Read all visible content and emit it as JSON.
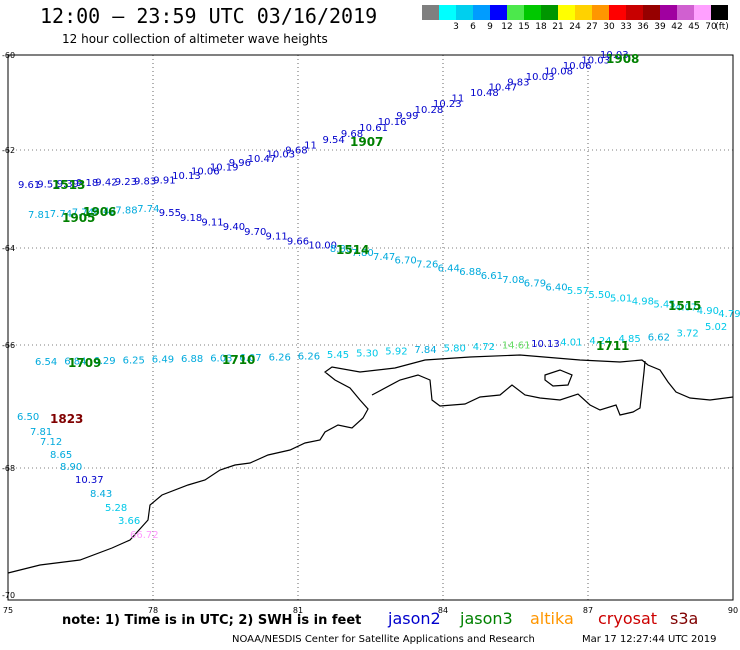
{
  "header": {
    "title": "12:00 — 23:59 UTC 03/16/2019",
    "subtitle": "12 hour collection of altimeter wave heights"
  },
  "legend": {
    "unit": "(ft)",
    "bins": [
      {
        "label": "",
        "color": "#7f7f7f"
      },
      {
        "label": "3",
        "color": "#00ffff"
      },
      {
        "label": "6",
        "color": "#00cfee"
      },
      {
        "label": "9",
        "color": "#009cff"
      },
      {
        "label": "12",
        "color": "#0000ff"
      },
      {
        "label": "15",
        "color": "#4ce84c"
      },
      {
        "label": "18",
        "color": "#00c800"
      },
      {
        "label": "21",
        "color": "#009600"
      },
      {
        "label": "24",
        "color": "#ffff00"
      },
      {
        "label": "27",
        "color": "#ffd200"
      },
      {
        "label": "30",
        "color": "#ff9600"
      },
      {
        "label": "33",
        "color": "#ff0000"
      },
      {
        "label": "36",
        "color": "#c80000"
      },
      {
        "label": "39",
        "color": "#960000"
      },
      {
        "label": "42",
        "color": "#a000a0"
      },
      {
        "label": "45",
        "color": "#d060d0"
      },
      {
        "label": "70",
        "color": "#ffa0ff"
      },
      {
        "label": "",
        "color": "#000000"
      }
    ]
  },
  "axes": {
    "lon_ticks": [
      "75",
      "78",
      "81",
      "84",
      "87",
      "90"
    ],
    "lat_ticks": [
      "-60",
      "-62",
      "-64",
      "-66",
      "-68",
      "-70"
    ]
  },
  "passes": [
    {
      "time": "1908",
      "color": "#008000"
    },
    {
      "time": "1907",
      "color": "#008000"
    },
    {
      "time": "1513",
      "color": "#008000"
    },
    {
      "time": "1906",
      "color": "#008000"
    },
    {
      "time": "1905",
      "color": "#008000"
    },
    {
      "time": "1514",
      "color": "#008000"
    },
    {
      "time": "1515",
      "color": "#008000"
    },
    {
      "time": "1709",
      "color": "#008000"
    },
    {
      "time": "1710",
      "color": "#008000"
    },
    {
      "time": "1711",
      "color": "#008000"
    },
    {
      "time": "1823",
      "color": "#800000"
    }
  ],
  "tracks": {
    "upper_jason2": [
      "9.61",
      "9.51",
      "9.39",
      "9.18",
      "9.42",
      "9.23",
      "9.83",
      "9.91",
      "10.13",
      "10.06",
      "10.19",
      "9.96",
      "10.47",
      "10.03",
      "9.68",
      "11",
      "9.54",
      "9.68",
      "10.61",
      "10.16",
      "9.99",
      "10.28",
      "10.23",
      "11",
      "10.48",
      "10.47",
      "9.83",
      "10.03",
      "10.08",
      "10.06",
      "10.03",
      "10.03"
    ],
    "upper_jason3": [
      "7.81",
      "7.74",
      "7.74",
      "8.42",
      "7.88",
      "7.74",
      "9.55",
      "9.18",
      "9.11",
      "9.40",
      "9.70",
      "9.11",
      "9.66",
      "10.00",
      "8.80",
      "7.80",
      "7.47",
      "6.70",
      "7.26",
      "6.44",
      "6.88",
      "6.61",
      "7.08",
      "6.79",
      "6.40",
      "5.57",
      "5.50",
      "5.01",
      "4.98",
      "5.45",
      "4.07",
      "4.90",
      "4.79",
      "5.0"
    ],
    "mid_track": [
      "6.54",
      "6.84",
      "6.29",
      "6.25",
      "6.49",
      "6.88",
      "6.03",
      "6.07",
      "6.26",
      "6.26",
      "5.45",
      "5.30",
      "5.92",
      "7.84",
      "5.80",
      "4.72",
      "14.61",
      "10.13",
      "4.01",
      "4.24",
      "4.85",
      "6.62",
      "3.72",
      "5.02"
    ],
    "left_track": [
      "6.50",
      "7.81",
      "7.12",
      "8.65",
      "8.90",
      "10.37",
      "8.43",
      "5.28",
      "3.66",
      "66.72"
    ]
  },
  "footer": {
    "note": "note:  1) Time is in UTC;  2) SWH is in feet",
    "missions": [
      {
        "name": "jason2",
        "color": "#0000cc"
      },
      {
        "name": "jason3",
        "color": "#008000"
      },
      {
        "name": "altika",
        "color": "#ff9600"
      },
      {
        "name": "cryosat",
        "color": "#cc0000"
      },
      {
        "name": "s3a",
        "color": "#800000"
      }
    ],
    "credit": "NOAA/NESDIS Center for Satellite Applications and Research",
    "timestamp": "Mar 17 12:27:44 UTC 2019"
  }
}
